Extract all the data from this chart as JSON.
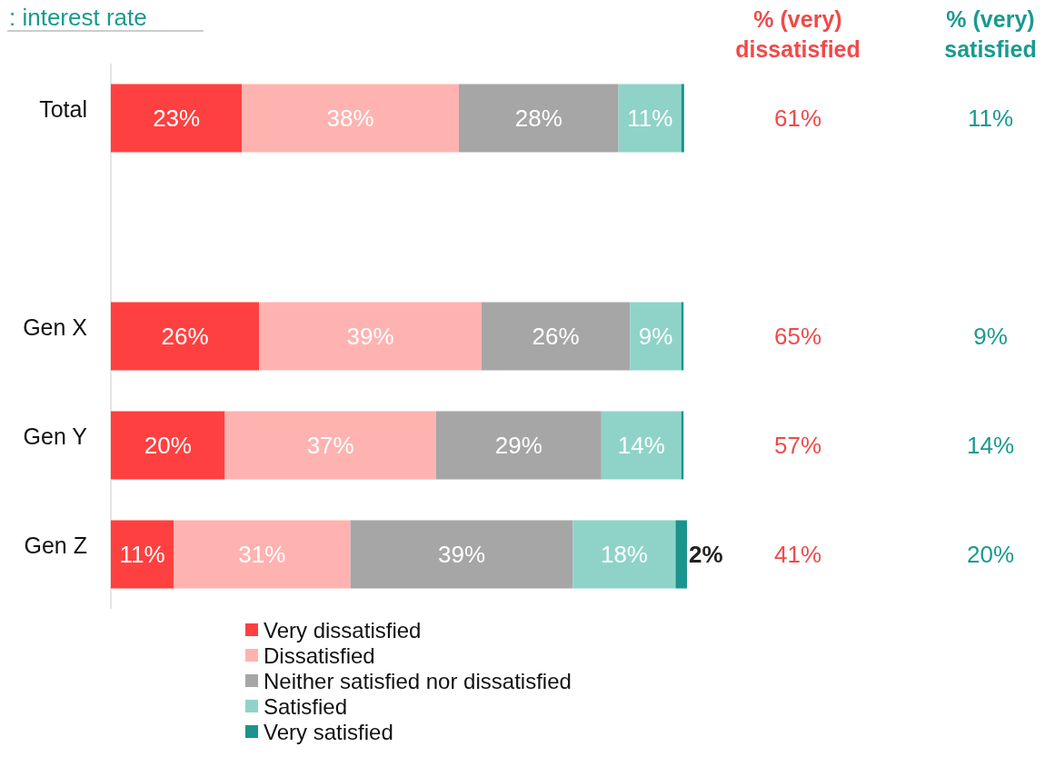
{
  "chart_data": {
    "type": "bar",
    "orientation": "horizontal",
    "stacked": true,
    "title": ": interest rate",
    "categories": [
      "Total",
      null,
      "Gen X",
      "Gen Y",
      "Gen Z"
    ],
    "xlim": [
      0,
      101
    ],
    "tick_labels": "y",
    "legend": "bottom",
    "series": [
      {
        "name": "Very dissatisfied",
        "color": "#ff4040",
        "values": [
          23,
          null,
          26,
          20,
          11
        ],
        "value_labels": [
          "23%",
          null,
          "26%",
          "20%",
          "11%"
        ]
      },
      {
        "name": "Dissatisfied",
        "color": "#ffb3b0",
        "values": [
          38,
          null,
          39,
          37,
          31
        ],
        "value_labels": [
          "38%",
          null,
          "39%",
          "37%",
          "31%"
        ]
      },
      {
        "name": "Neither satisfied nor dissatisfied",
        "color": "#a6a6a6",
        "values": [
          28,
          null,
          26,
          29,
          39
        ],
        "value_labels": [
          "28%",
          null,
          "26%",
          "29%",
          "39%"
        ]
      },
      {
        "name": "Satisfied",
        "color": "#8fd3c8",
        "values": [
          11,
          null,
          9,
          14,
          18
        ],
        "value_labels": [
          "11%",
          null,
          "9%",
          "14%",
          "18%"
        ]
      },
      {
        "name": "Very satisfied",
        "color": "#1a948c",
        "values": [
          0.5,
          null,
          0.4,
          0.4,
          2
        ],
        "value_labels": [
          null,
          null,
          null,
          null,
          "2%"
        ]
      }
    ],
    "annotations": [
      "% (very) dissatisfied",
      "% (very) satisfied",
      "61%",
      "11%",
      "65%",
      "9%",
      "57%",
      "14%",
      "41%",
      "20%"
    ]
  }
}
